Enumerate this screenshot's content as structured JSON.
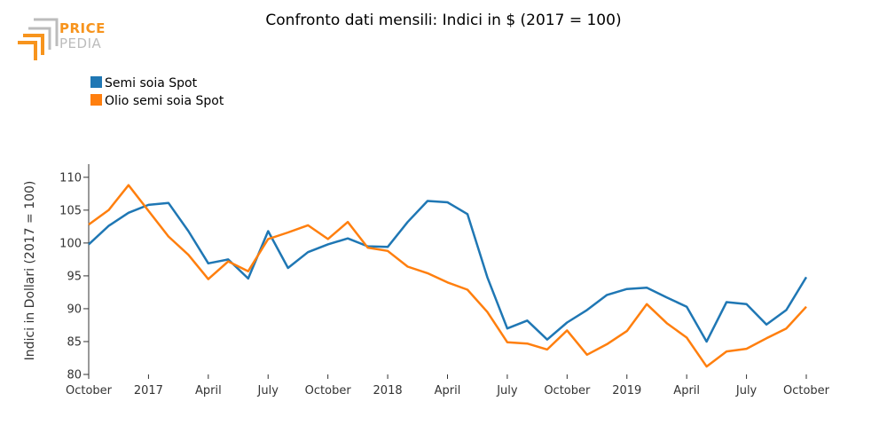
{
  "logo": {
    "line1": "PRICE",
    "line2": "PEDIA",
    "color_primary": "#f7941d",
    "color_secondary": "#bcbcbc"
  },
  "chart_data": {
    "type": "line",
    "title": "Confronto dati mensili: Indici in $ (2017 = 100)",
    "ylabel": "Indici in Dollari (2017 = 100)",
    "xlabel": "",
    "ylim": [
      80,
      112
    ],
    "yticks": [
      80,
      85,
      90,
      95,
      100,
      105,
      110
    ],
    "xticks": [
      {
        "month": "2016-10",
        "label": "October"
      },
      {
        "month": "2017-01",
        "label": "2017"
      },
      {
        "month": "2017-04",
        "label": "April"
      },
      {
        "month": "2017-07",
        "label": "July"
      },
      {
        "month": "2017-10",
        "label": "October"
      },
      {
        "month": "2018-01",
        "label": "2018"
      },
      {
        "month": "2018-04",
        "label": "April"
      },
      {
        "month": "2018-07",
        "label": "July"
      },
      {
        "month": "2018-10",
        "label": "October"
      },
      {
        "month": "2019-01",
        "label": "2019"
      },
      {
        "month": "2019-04",
        "label": "April"
      },
      {
        "month": "2019-07",
        "label": "July"
      },
      {
        "month": "2019-10",
        "label": "October"
      }
    ],
    "x": [
      "2016-10",
      "2016-11",
      "2016-12",
      "2017-01",
      "2017-02",
      "2017-03",
      "2017-04",
      "2017-05",
      "2017-06",
      "2017-07",
      "2017-08",
      "2017-09",
      "2017-10",
      "2017-11",
      "2017-12",
      "2018-01",
      "2018-02",
      "2018-03",
      "2018-04",
      "2018-05",
      "2018-06",
      "2018-07",
      "2018-08",
      "2018-09",
      "2018-10",
      "2018-11",
      "2018-12",
      "2019-01",
      "2019-02",
      "2019-03",
      "2019-04",
      "2019-05",
      "2019-06",
      "2019-07",
      "2019-08",
      "2019-09",
      "2019-10"
    ],
    "grid": false,
    "legend_position": "top-left",
    "series": [
      {
        "name": "Semi soia Spot",
        "color": "#1f77b4",
        "values": [
          99.8,
          102.6,
          104.6,
          105.8,
          106.1,
          101.8,
          96.9,
          97.5,
          94.6,
          101.8,
          96.2,
          98.6,
          99.8,
          100.7,
          99.5,
          99.4,
          103.2,
          106.4,
          106.2,
          104.4,
          94.8,
          87.0,
          88.2,
          85.3,
          87.9,
          89.8,
          92.1,
          93.0,
          93.2,
          91.7,
          90.3,
          85.0,
          91.0,
          90.7,
          87.6,
          89.8,
          94.8
        ]
      },
      {
        "name": "Olio semi soia Spot",
        "color": "#ff7f0e",
        "values": [
          102.8,
          105.0,
          108.8,
          104.9,
          101.0,
          98.2,
          94.5,
          97.2,
          95.7,
          100.6,
          101.6,
          102.7,
          100.6,
          103.2,
          99.3,
          98.8,
          96.4,
          95.4,
          94.0,
          92.9,
          89.5,
          84.9,
          84.7,
          83.8,
          86.7,
          83.0,
          84.6,
          86.6,
          90.7,
          87.8,
          85.6,
          81.2,
          83.5,
          83.9,
          85.5,
          87.0,
          90.3
        ]
      }
    ]
  }
}
